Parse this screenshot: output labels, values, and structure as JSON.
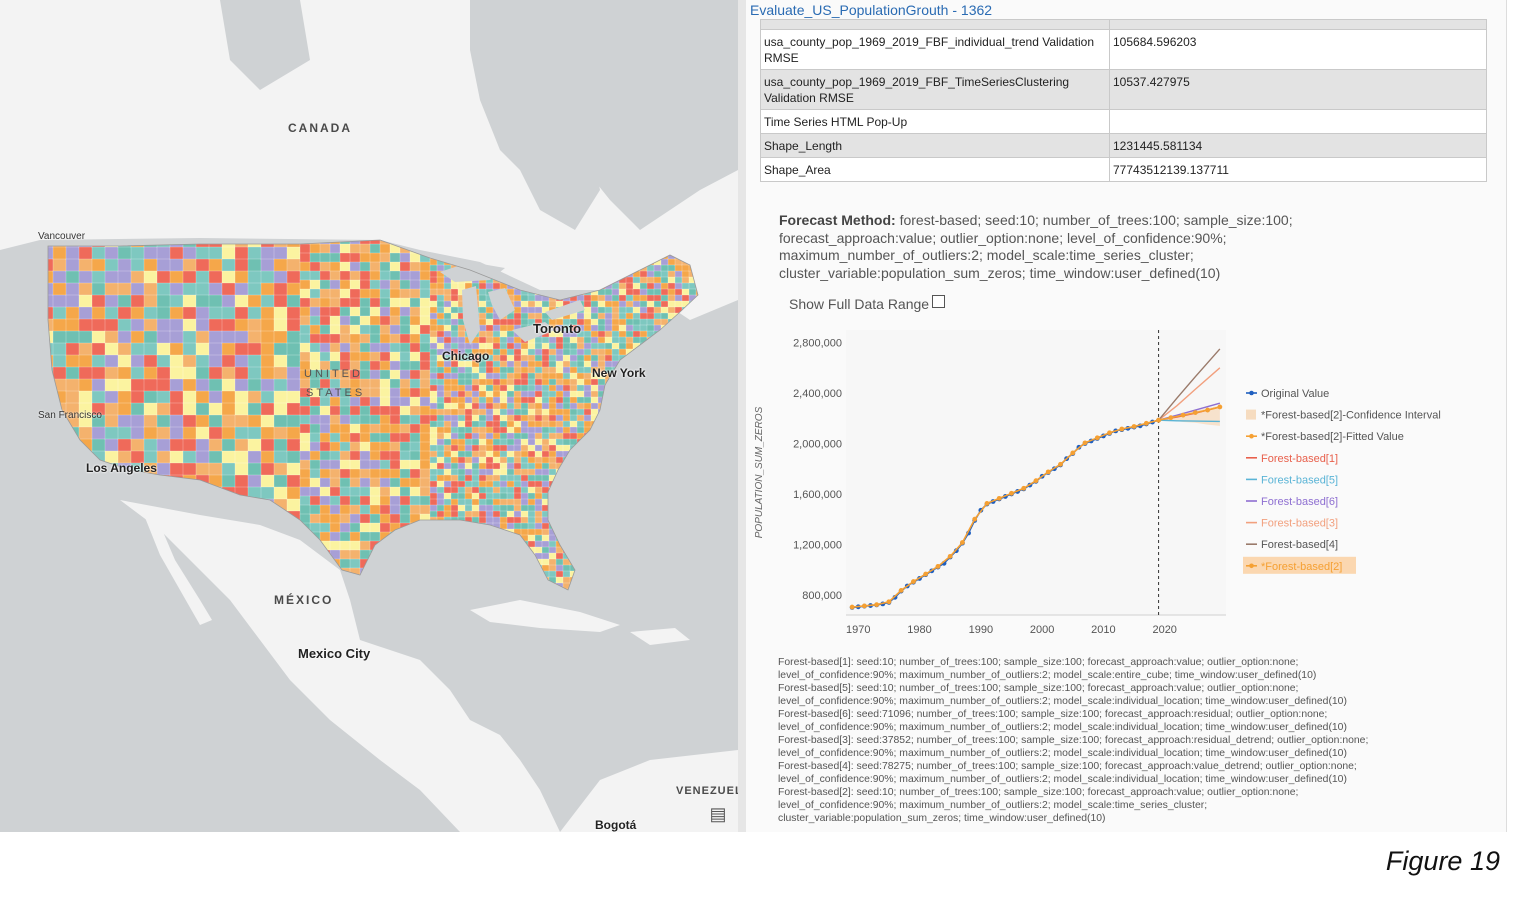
{
  "map": {
    "labels": {
      "canada": "CANADA",
      "vancouver": "Vancouver",
      "toronto": "Toronto",
      "chicago": "Chicago",
      "united": "UNITED",
      "states": "STATES",
      "new_york": "New York",
      "san_francisco": "San Francisco",
      "los_angeles": "Los Angeles",
      "mexico": "MÉXICO",
      "mexico_city": "Mexico City",
      "venezuela": "VENEZUEL",
      "bogota": "Bogotá"
    },
    "county_colors": [
      "#ef6a5a",
      "#f5a74a",
      "#7ec8c0",
      "#a79fd6",
      "#fbf3a0",
      "#6fc0b2",
      "#f4b26d"
    ],
    "land_color": "#f3f3f3",
    "water_color": "#cfd2d4"
  },
  "popup": {
    "title": "Evaluate_US_PopulationGrouth - 1362",
    "table": [
      {
        "key": "usa_county_pop_1969_2019_FBF_individual_trend Validation RMSE",
        "value": "105684.596203",
        "shade": "w"
      },
      {
        "key": "usa_county_pop_1969_2019_FBF_TimeSeriesClustering Validation RMSE",
        "value": "10537.427975",
        "shade": "g"
      },
      {
        "key": "Time Series HTML Pop-Up",
        "value": "",
        "shade": "w"
      },
      {
        "key": "Shape_Length",
        "value": "1231445.581134",
        "shade": "g"
      },
      {
        "key": "Shape_Area",
        "value": "77743512139.137711",
        "shade": "w"
      }
    ],
    "forecast_method_label": "Forecast Method:",
    "forecast_method_text": " forest-based; seed:10; number_of_trees:100; sample_size:100; forecast_approach:value; outlier_option:none; level_of_confidence:90%; maximum_number_of_outliers:2; model_scale:time_series_cluster; cluster_variable:population_sum_zeros; time_window:user_defined(10)",
    "show_full_range_label": "Show Full Data Range",
    "notes": [
      "Forest-based[1]: seed:10; number_of_trees:100; sample_size:100; forecast_approach:value; outlier_option:none;",
      "level_of_confidence:90%; maximum_number_of_outliers:2; model_scale:entire_cube; time_window:user_defined(10)",
      "Forest-based[5]: seed:10; number_of_trees:100; sample_size:100; forecast_approach:value; outlier_option:none;",
      "level_of_confidence:90%; maximum_number_of_outliers:2; model_scale:individual_location; time_window:user_defined(10)",
      "Forest-based[6]: seed:71096; number_of_trees:100; sample_size:100; forecast_approach:residual; outlier_option:none;",
      "level_of_confidence:90%; maximum_number_of_outliers:2; model_scale:individual_location; time_window:user_defined(10)",
      "Forest-based[3]: seed:37852; number_of_trees:100; sample_size:100; forecast_approach:residual_detrend; outlier_option:none;",
      "level_of_confidence:90%; maximum_number_of_outliers:2; model_scale:individual_location; time_window:user_defined(10)",
      "Forest-based[4]: seed:78275; number_of_trees:100; sample_size:100; forecast_approach:value_detrend; outlier_option:none;",
      "level_of_confidence:90%; maximum_number_of_outliers:2; model_scale:individual_location; time_window:user_defined(10)",
      "Forest-based[2]: seed:10; number_of_trees:100; sample_size:100; forecast_approach:value; outlier_option:none;",
      "level_of_confidence:90%; maximum_number_of_outliers:2; model_scale:time_series_cluster;",
      "cluster_variable:population_sum_zeros; time_window:user_defined(10)"
    ]
  },
  "figure_caption": "Figure 19",
  "chart_data": {
    "type": "line",
    "ylabel": "POPULATION_SUM_ZEROS",
    "xlabel": "",
    "xlim": [
      1968,
      2030
    ],
    "ylim": [
      640000,
      2900000
    ],
    "xticks": [
      1970,
      1980,
      1990,
      2000,
      2010,
      2020
    ],
    "yticks": [
      800000,
      1200000,
      1600000,
      2000000,
      2400000,
      2800000
    ],
    "ytick_labels": [
      "800,000",
      "1,200,000",
      "1,600,000",
      "2,000,000",
      "2,400,000",
      "2,800,000"
    ],
    "forecast_start": 2019,
    "legend_placement": "right",
    "series": [
      {
        "name": "Original Value",
        "color": "#1f5fbf",
        "marker": "dot",
        "x": [
          1969,
          1970,
          1971,
          1972,
          1973,
          1974,
          1975,
          1976,
          1977,
          1978,
          1979,
          1980,
          1981,
          1982,
          1983,
          1984,
          1985,
          1986,
          1987,
          1988,
          1989,
          1990,
          1991,
          1992,
          1993,
          1994,
          1995,
          1996,
          1997,
          1998,
          1999,
          2000,
          2001,
          2002,
          2003,
          2004,
          2005,
          2006,
          2007,
          2008,
          2009,
          2010,
          2011,
          2012,
          2013,
          2014,
          2015,
          2016,
          2017,
          2018,
          2019
        ],
        "values": [
          700000,
          705000,
          710000,
          715000,
          720000,
          728000,
          740000,
          780000,
          830000,
          870000,
          900000,
          930000,
          960000,
          990000,
          1020000,
          1050000,
          1100000,
          1150000,
          1210000,
          1290000,
          1390000,
          1470000,
          1520000,
          1540000,
          1560000,
          1580000,
          1600000,
          1620000,
          1640000,
          1670000,
          1700000,
          1740000,
          1770000,
          1800000,
          1830000,
          1880000,
          1920000,
          1970000,
          2000000,
          2020000,
          2040000,
          2060000,
          2080000,
          2100000,
          2110000,
          2120000,
          2130000,
          2140000,
          2155000,
          2170000,
          2185000
        ]
      },
      {
        "name": "*Forest-based[2]-Confidence Interval",
        "color": "#f6dcc0",
        "kind": "band",
        "x": [
          2019,
          2021,
          2023,
          2025,
          2027,
          2029
        ],
        "lower": [
          2185000,
          2185000,
          2170000,
          2165000,
          2150000,
          2140000
        ],
        "upper": [
          2185000,
          2215000,
          2240000,
          2260000,
          2280000,
          2300000
        ]
      },
      {
        "name": "*Forest-based[2]-Fitted Value",
        "color": "#f5a033",
        "marker": "dot",
        "x": [
          1969,
          1971,
          1973,
          1975,
          1977,
          1979,
          1981,
          1983,
          1985,
          1987,
          1989,
          1991,
          1993,
          1995,
          1997,
          1999,
          2001,
          2003,
          2005,
          2007,
          2009,
          2011,
          2013,
          2015,
          2017,
          2019
        ],
        "values": [
          703000,
          712000,
          722000,
          745000,
          835000,
          905000,
          965000,
          1025000,
          1105000,
          1215000,
          1400000,
          1525000,
          1565000,
          1605000,
          1645000,
          1705000,
          1775000,
          1835000,
          1925000,
          2005000,
          2045000,
          2085000,
          2115000,
          2135000,
          2160000,
          2185000
        ]
      },
      {
        "name": "Forest-based[1]",
        "color": "#e8604c",
        "x": [
          2019,
          2022,
          2025,
          2029
        ],
        "values": [
          2185000,
          2210000,
          2240000,
          2290000
        ]
      },
      {
        "name": "Forest-based[5]",
        "color": "#5ab4d6",
        "x": [
          2019,
          2022,
          2025,
          2029
        ],
        "values": [
          2185000,
          2180000,
          2178000,
          2175000
        ]
      },
      {
        "name": "Forest-based[6]",
        "color": "#8e6fd1",
        "x": [
          2019,
          2022,
          2025,
          2029
        ],
        "values": [
          2185000,
          2225000,
          2265000,
          2320000
        ]
      },
      {
        "name": "Forest-based[3]",
        "color": "#f2a07e",
        "x": [
          2019,
          2022,
          2025,
          2029
        ],
        "values": [
          2185000,
          2300000,
          2430000,
          2600000
        ]
      },
      {
        "name": "Forest-based[4]",
        "color": "#9a7a6a",
        "x": [
          2019,
          2022,
          2025,
          2029
        ],
        "values": [
          2185000,
          2360000,
          2530000,
          2750000
        ]
      },
      {
        "name": "*Forest-based[2]",
        "color": "#f5a033",
        "marker": "dot",
        "highlight": true,
        "x": [
          2019,
          2021,
          2023,
          2025,
          2027,
          2029
        ],
        "values": [
          2185000,
          2205000,
          2225000,
          2245000,
          2265000,
          2290000
        ]
      }
    ]
  }
}
